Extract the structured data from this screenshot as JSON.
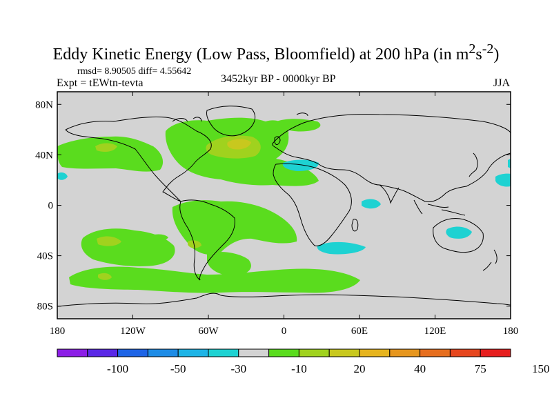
{
  "title": {
    "prefix": "Eddy Kinetic Energy (Low Pass, Bloomfield) at 200 hPa (in m",
    "sup1": "2",
    "mid": "s",
    "sup2": "-2",
    "suffix": ")"
  },
  "stats": "rmsd= 8.90505 diff= 4.55642",
  "expt": "Expt = tEWtn-tevta",
  "period": "3452kyr BP - 0000kyr BP",
  "season": "JJA",
  "map": {
    "background_color": "#d3d3d3",
    "lat_ticks": [
      "80N",
      "40N",
      "0",
      "40S",
      "80S"
    ],
    "lat_values": [
      80,
      40,
      0,
      -40,
      -80
    ],
    "lon_ticks": [
      "180",
      "120W",
      "60W",
      "0",
      "60E",
      "120E",
      "180"
    ],
    "lon_values": [
      -180,
      -120,
      -60,
      0,
      60,
      120,
      180
    ]
  },
  "colorbar": {
    "colors": [
      "#8c1ee6",
      "#5a28e6",
      "#1e64e6",
      "#1e8ce6",
      "#1eb4e6",
      "#1ed2d2",
      "#d3d3d3",
      "#5adc1e",
      "#a0d21e",
      "#c8c81e",
      "#e6b41e",
      "#e6961e",
      "#e66e1e",
      "#e6461e",
      "#e61e1e"
    ],
    "labels": [
      "-100",
      "-50",
      "-30",
      "-10",
      "20",
      "40",
      "75",
      "150"
    ]
  }
}
